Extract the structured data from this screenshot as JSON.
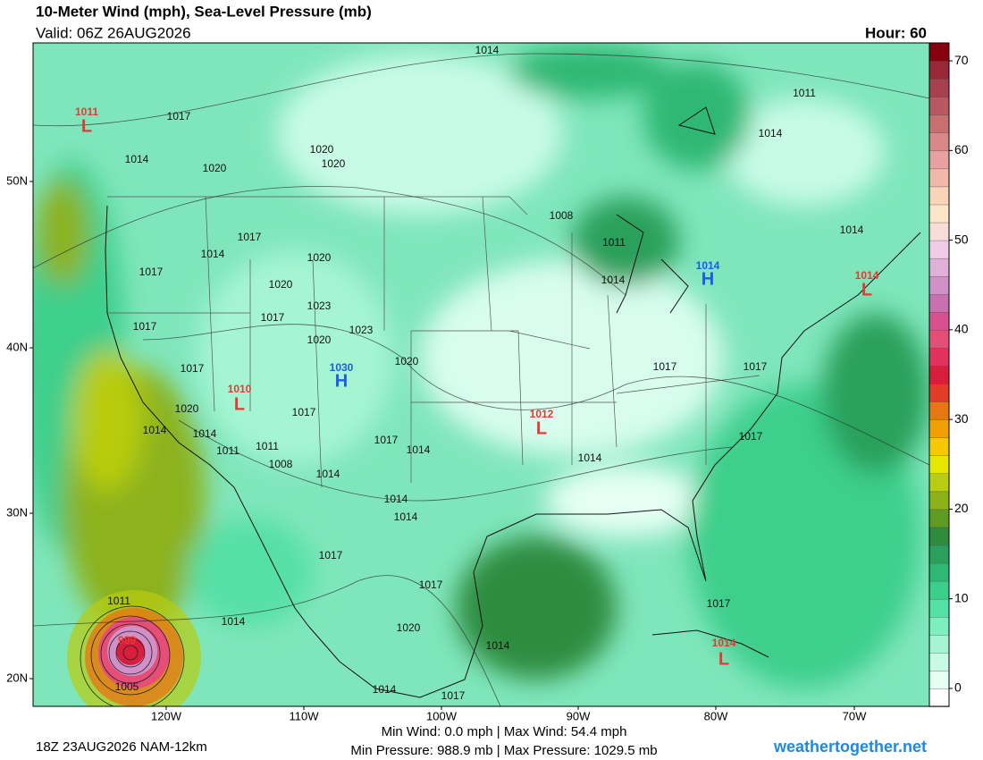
{
  "header": {
    "title": "10-Meter Wind (mph), Sea-Level Pressure (mb)",
    "valid": "Valid: 06Z 26AUG2026",
    "hour": "Hour: 60"
  },
  "lat_labels": [
    "50N",
    "40N",
    "30N",
    "20N"
  ],
  "lon_labels": [
    "120W",
    "110W",
    "100W",
    "90W",
    "80W",
    "70W"
  ],
  "colorbar": {
    "lim": [
      -2,
      72
    ],
    "ticks": [
      0,
      10,
      20,
      30,
      40,
      50,
      60,
      70
    ],
    "colors": [
      "#ffffff",
      "#e6fff5",
      "#c8fbe6",
      "#a5f5d2",
      "#7deebe",
      "#55e0a6",
      "#3ccf8c",
      "#2fb873",
      "#29a05c",
      "#2f8c3f",
      "#5f9a23",
      "#8cb21a",
      "#b8cc10",
      "#e6e600",
      "#f5c800",
      "#f0a000",
      "#e67814",
      "#e03c28",
      "#d91e3c",
      "#e0325a",
      "#e64e78",
      "#d85090",
      "#c870b0",
      "#d090c8",
      "#e0b0d8",
      "#f0cce6",
      "#f8dcd8",
      "#fce6c8",
      "#f8d4b8",
      "#f0b8a8",
      "#e8a0a0",
      "#d88888",
      "#c87070",
      "#b85860",
      "#a84050",
      "#982838",
      "#880010"
    ]
  },
  "pressure_labels": [
    {
      "text": "1014",
      "kind": "isobar"
    },
    {
      "text": "1011",
      "kind": "low"
    },
    {
      "text": "L",
      "kind": "low"
    },
    {
      "text": "1017",
      "kind": "isobar"
    },
    {
      "text": "1014",
      "kind": "isobar"
    },
    {
      "text": "1020",
      "kind": "isobar"
    },
    {
      "text": "1020",
      "kind": "isobar"
    },
    {
      "text": "1020",
      "kind": "isobar"
    },
    {
      "text": "1011",
      "kind": "isobar"
    },
    {
      "text": "1014",
      "kind": "isobar"
    },
    {
      "text": "1008",
      "kind": "isobar"
    },
    {
      "text": "1017",
      "kind": "isobar"
    },
    {
      "text": "1014",
      "kind": "isobar"
    },
    {
      "text": "1014",
      "kind": "isobar"
    },
    {
      "text": "1011",
      "kind": "isobar"
    },
    {
      "text": "1020",
      "kind": "isobar"
    },
    {
      "text": "1017",
      "kind": "isobar"
    },
    {
      "text": "1020",
      "kind": "isobar"
    },
    {
      "text": "1014",
      "kind": "isobar"
    },
    {
      "text": "1014",
      "kind": "low"
    },
    {
      "text": "L",
      "kind": "low"
    },
    {
      "text": "1014",
      "kind": "high"
    },
    {
      "text": "H",
      "kind": "high"
    },
    {
      "text": "1023",
      "kind": "isobar"
    },
    {
      "text": "1017",
      "kind": "isobar"
    },
    {
      "text": "1017",
      "kind": "isobar"
    },
    {
      "text": "1023",
      "kind": "isobar"
    },
    {
      "text": "1020",
      "kind": "isobar"
    },
    {
      "text": "1017",
      "kind": "isobar"
    },
    {
      "text": "1030",
      "kind": "high"
    },
    {
      "text": "H",
      "kind": "high"
    },
    {
      "text": "1020",
      "kind": "isobar"
    },
    {
      "text": "1017",
      "kind": "isobar"
    },
    {
      "text": "1017",
      "kind": "isobar"
    },
    {
      "text": "1010",
      "kind": "low"
    },
    {
      "text": "L",
      "kind": "low"
    },
    {
      "text": "1012",
      "kind": "low"
    },
    {
      "text": "L",
      "kind": "low"
    },
    {
      "text": "1020",
      "kind": "isobar"
    },
    {
      "text": "1017",
      "kind": "isobar"
    },
    {
      "text": "1014",
      "kind": "isobar"
    },
    {
      "text": "1014",
      "kind": "isobar"
    },
    {
      "text": "1017",
      "kind": "isobar"
    },
    {
      "text": "1011",
      "kind": "isobar"
    },
    {
      "text": "1011",
      "kind": "isobar"
    },
    {
      "text": "1014",
      "kind": "isobar"
    },
    {
      "text": "1017",
      "kind": "isobar"
    },
    {
      "text": "1008",
      "kind": "isobar"
    },
    {
      "text": "1014",
      "kind": "isobar"
    },
    {
      "text": "1014",
      "kind": "isobar"
    },
    {
      "text": "1014",
      "kind": "isobar"
    },
    {
      "text": "1014",
      "kind": "isobar"
    },
    {
      "text": "1017",
      "kind": "isobar"
    },
    {
      "text": "1017",
      "kind": "isobar"
    },
    {
      "text": "1011",
      "kind": "isobar"
    },
    {
      "text": "1014",
      "kind": "isobar"
    },
    {
      "text": "1017",
      "kind": "isobar"
    },
    {
      "text": "1020",
      "kind": "isobar"
    },
    {
      "text": "1014",
      "kind": "isobar"
    },
    {
      "text": "1014",
      "kind": "low"
    },
    {
      "text": "L",
      "kind": "low"
    },
    {
      "text": "989",
      "kind": "low"
    },
    {
      "text": "1005",
      "kind": "isobar"
    },
    {
      "text": "1014",
      "kind": "isobar"
    },
    {
      "text": "1017",
      "kind": "isobar"
    }
  ],
  "footer": {
    "run": "18Z 23AUG2026 NAM-12km",
    "wind": "Min Wind:   0.0 mph | Max Wind:  54.4 mph",
    "pressure": "Min Pressure: 988.9 mb | Max Pressure: 1029.5 mb",
    "site": "weathertogether.net"
  }
}
